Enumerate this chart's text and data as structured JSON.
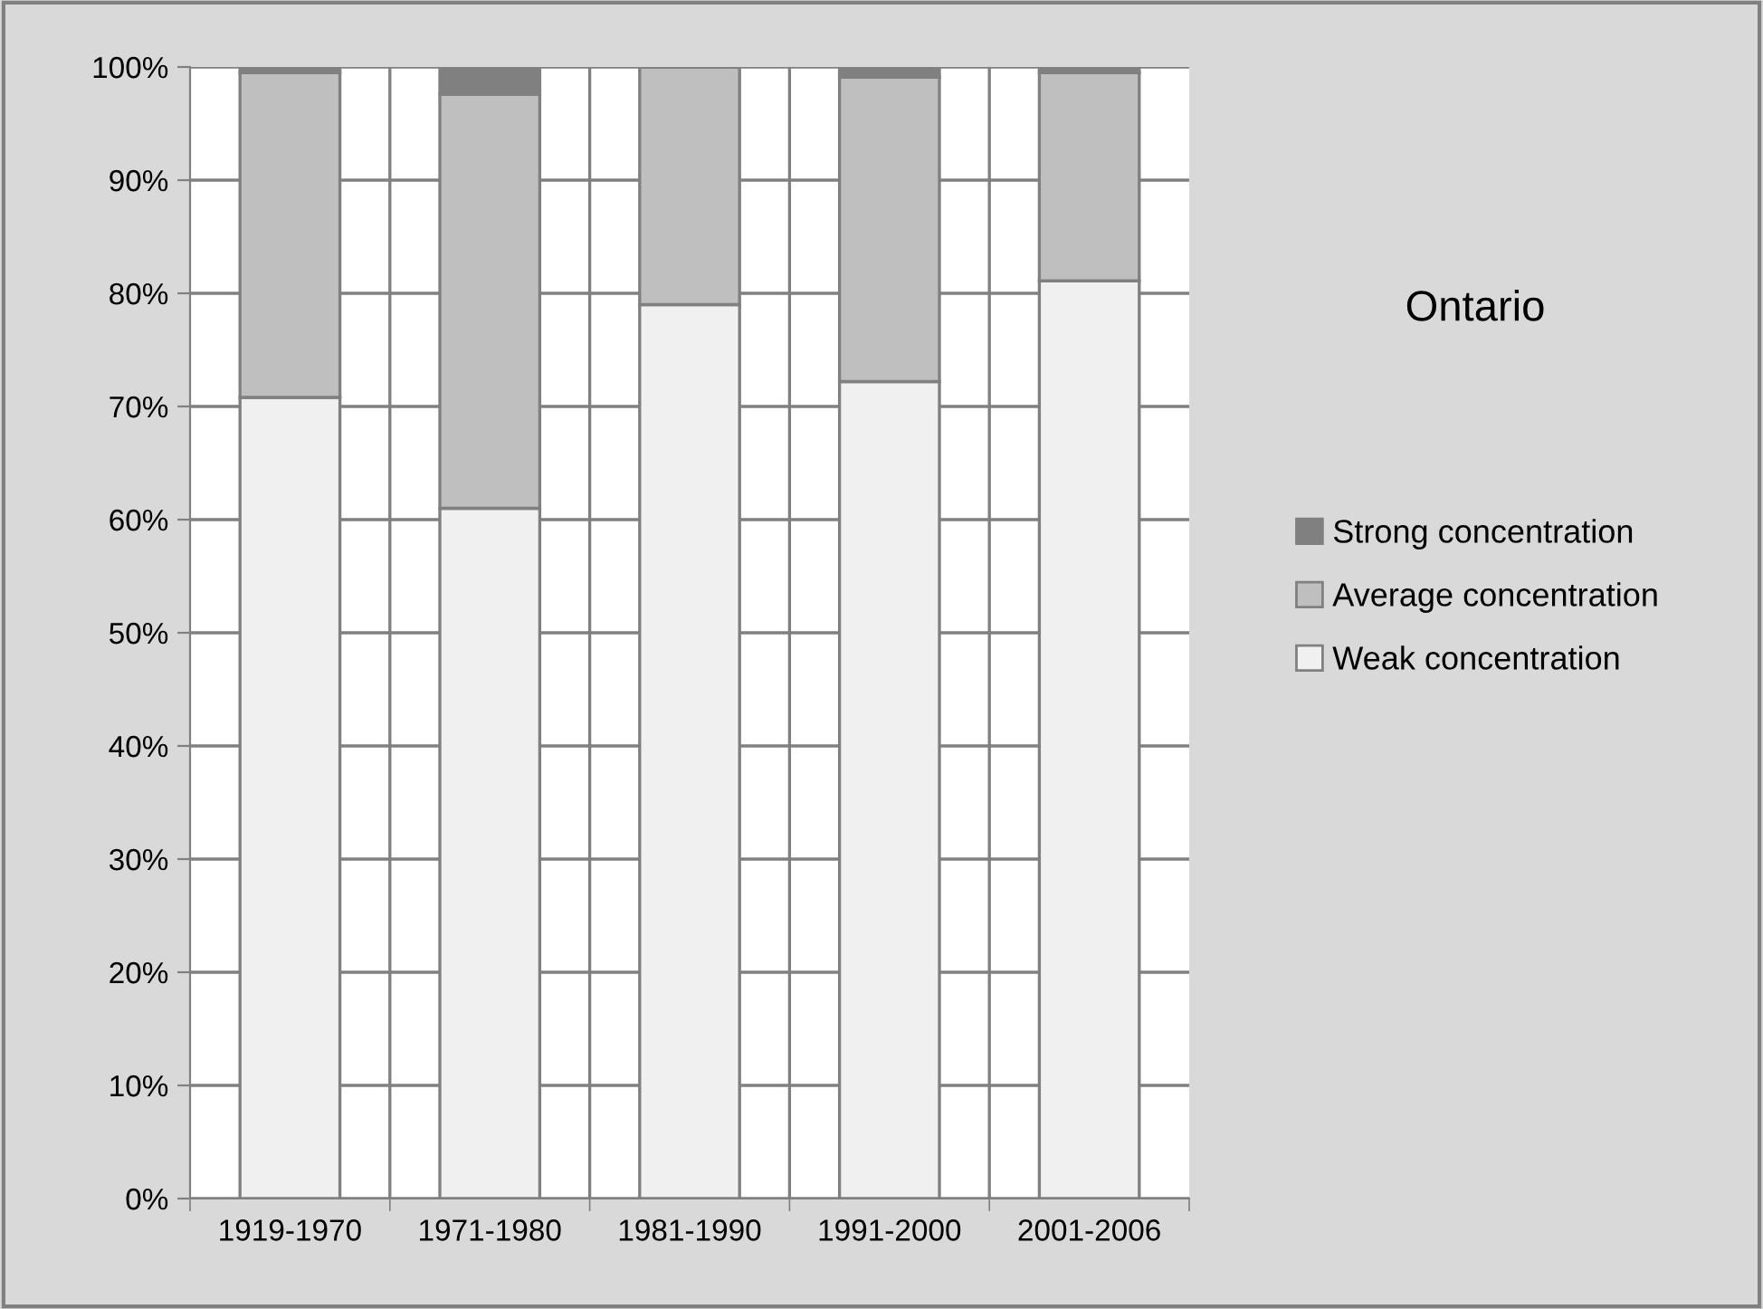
{
  "chart_data": {
    "type": "bar",
    "title": "Ontario",
    "stacked": true,
    "categories": [
      "1919-1970",
      "1971-1980",
      "1981-1990",
      "1991-2000",
      "2001-2006"
    ],
    "series": [
      {
        "name": "Weak concentration",
        "color": "#f0f0f0",
        "values": [
          70.8,
          61.0,
          79.0,
          72.2,
          81.1
        ]
      },
      {
        "name": "Average concentration",
        "color": "#bfbfbf",
        "values": [
          28.7,
          36.6,
          21.0,
          26.9,
          18.4
        ]
      },
      {
        "name": "Strong concentration",
        "color": "#808080",
        "values": [
          0.5,
          2.4,
          0,
          0.9,
          0.5
        ]
      }
    ],
    "ylim": [
      0,
      100
    ],
    "yticks": [
      {
        "value": 0,
        "label": "0%"
      },
      {
        "value": 10,
        "label": "10%"
      },
      {
        "value": 20,
        "label": "20%"
      },
      {
        "value": 30,
        "label": "30%"
      },
      {
        "value": 40,
        "label": "40%"
      },
      {
        "value": 50,
        "label": "50%"
      },
      {
        "value": 60,
        "label": "60%"
      },
      {
        "value": 70,
        "label": "70%"
      },
      {
        "value": 80,
        "label": "80%"
      },
      {
        "value": 90,
        "label": "90%"
      },
      {
        "value": 100,
        "label": "100%"
      }
    ],
    "grid": true,
    "legend": "right"
  }
}
